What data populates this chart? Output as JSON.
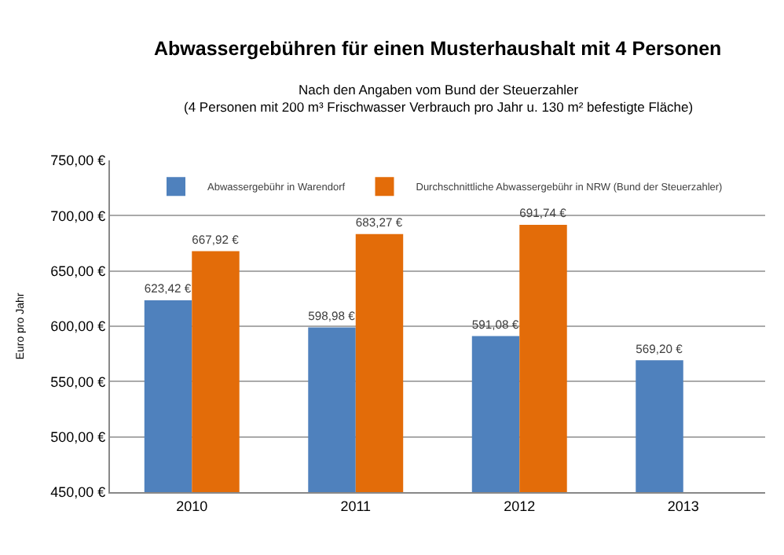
{
  "chart_data": {
    "type": "bar",
    "title": "Abwassergebühren für einen Musterhaushalt mit 4 Personen",
    "subtitle": "Nach den Angaben vom Bund der Steuerzahler\n(4 Personen mit 200 m³ Frischwasser Verbrauch pro Jahr u. 130 m² befestigte Fläche)",
    "ylabel": "Euro pro Jahr",
    "categories": [
      "2010",
      "2011",
      "2012",
      "2013"
    ],
    "series": [
      {
        "name": "Abwassergebühr in Warendorf",
        "color": "#4f81bd",
        "values": [
          623.42,
          598.98,
          591.08,
          569.2
        ],
        "value_labels": [
          "623,42 €",
          "598,98 €",
          "591,08 €",
          "569,20 €"
        ]
      },
      {
        "name": "Durchschnittliche Abwassergebühr in NRW (Bund der Steuerzahler)",
        "color": "#e36c09",
        "values": [
          667.92,
          683.27,
          691.74,
          null
        ],
        "value_labels": [
          "667,92 €",
          "683,27 €",
          "691,74 €",
          null
        ]
      }
    ],
    "ylim": [
      450,
      750
    ],
    "yticks": [
      {
        "value": 450,
        "label": "450,00 €"
      },
      {
        "value": 500,
        "label": "500,00 €"
      },
      {
        "value": 550,
        "label": "550,00 €"
      },
      {
        "value": 600,
        "label": "600,00 €"
      },
      {
        "value": 650,
        "label": "650,00 €"
      },
      {
        "value": 700,
        "label": "700,00 €"
      },
      {
        "value": 750,
        "label": "750,00 €"
      }
    ],
    "grid": "y",
    "legend": "top"
  }
}
